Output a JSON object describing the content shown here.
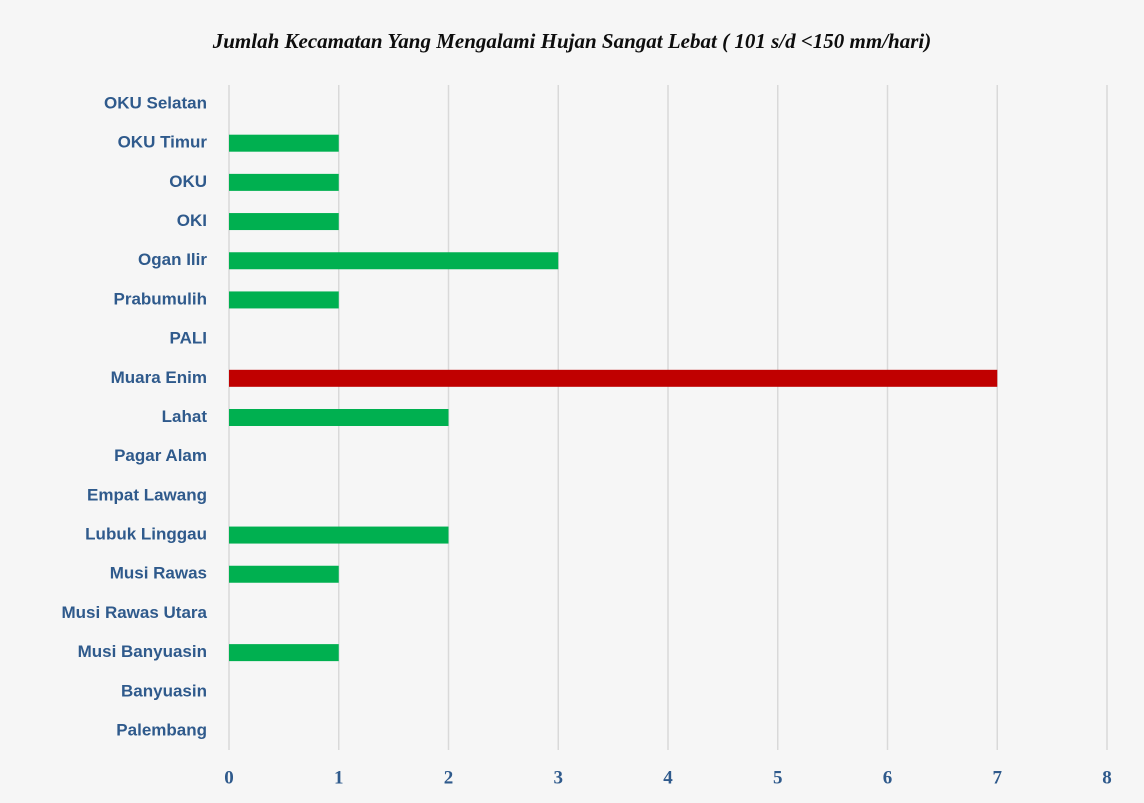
{
  "chart_data": {
    "type": "barh",
    "title": "Jumlah Kecamatan Yang Mengalami Hujan Sangat Lebat ( 101 s/d <150 mm/hari)",
    "categories": [
      "OKU Selatan",
      "OKU Timur",
      "OKU",
      "OKI",
      "Ogan Ilir",
      "Prabumulih",
      "PALI",
      "Muara Enim",
      "Lahat",
      "Pagar Alam",
      "Empat Lawang",
      "Lubuk Linggau",
      "Musi Rawas",
      "Musi Rawas Utara",
      "Musi Banyuasin",
      "Banyuasin",
      "Palembang"
    ],
    "values": [
      0,
      1,
      1,
      1,
      3,
      1,
      0,
      7,
      2,
      0,
      0,
      2,
      1,
      0,
      1,
      0,
      0
    ],
    "colors": [
      "#00b050",
      "#00b050",
      "#00b050",
      "#00b050",
      "#00b050",
      "#00b050",
      "#00b050",
      "#c00000",
      "#00b050",
      "#00b050",
      "#00b050",
      "#00b050",
      "#00b050",
      "#00b050",
      "#00b050",
      "#00b050",
      "#00b050"
    ],
    "xlim": [
      0,
      8
    ],
    "xticks": [
      0,
      1,
      2,
      3,
      4,
      5,
      6,
      7,
      8
    ],
    "grid": true
  }
}
